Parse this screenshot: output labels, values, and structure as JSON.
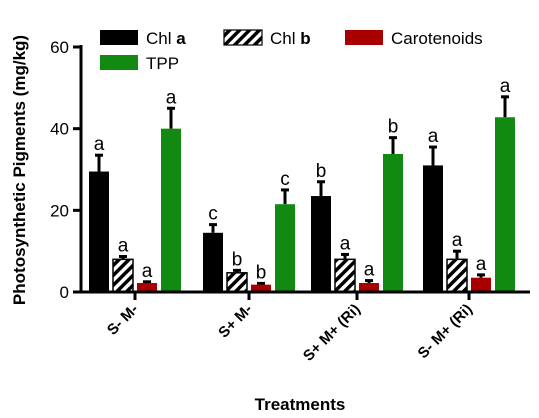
{
  "chart_data": {
    "type": "bar",
    "xlabel": "Treatments",
    "ylabel": "Photosynthetic Pigments (mg/kg)",
    "ylim": [
      0,
      60
    ],
    "yticks": [
      0,
      20,
      40,
      60
    ],
    "categories": [
      "S- M-",
      "S+ M-",
      "S+ M+ (Ri)",
      "S- M+ (Ri)"
    ],
    "grid": false,
    "legend_position": "top",
    "series": [
      {
        "name": "Chl a",
        "name_main": "Chl",
        "name_suffix": "a",
        "color": "#000000",
        "pattern": "solid",
        "values": [
          29.5,
          14.5,
          23.5,
          31
        ],
        "errors": [
          4,
          2,
          3.5,
          4.5
        ],
        "letters": [
          "a",
          "c",
          "b",
          "a"
        ]
      },
      {
        "name": "Chl b",
        "name_main": "Chl",
        "name_suffix": "b",
        "color": "#000000",
        "pattern": "hatch",
        "values": [
          8,
          4.7,
          8,
          8
        ],
        "errors": [
          0.7,
          0.6,
          1.2,
          2
        ],
        "letters": [
          "a",
          "b",
          "a",
          "a"
        ]
      },
      {
        "name": "Carotenoids",
        "name_main": "Carotenoids",
        "name_suffix": "",
        "color": "#a80000",
        "pattern": "solid",
        "values": [
          2.2,
          1.8,
          2.2,
          3.5
        ],
        "errors": [
          0.3,
          0.3,
          0.6,
          0.7
        ],
        "letters": [
          "a",
          "b",
          "a",
          "a"
        ]
      },
      {
        "name": "TPP",
        "name_main": "TPP",
        "name_suffix": "",
        "color": "#128a12",
        "pattern": "solid",
        "values": [
          40,
          21.5,
          33.8,
          42.8
        ],
        "errors": [
          5,
          3.5,
          4,
          5
        ],
        "letters": [
          "a",
          "c",
          "b",
          "a"
        ]
      }
    ]
  }
}
